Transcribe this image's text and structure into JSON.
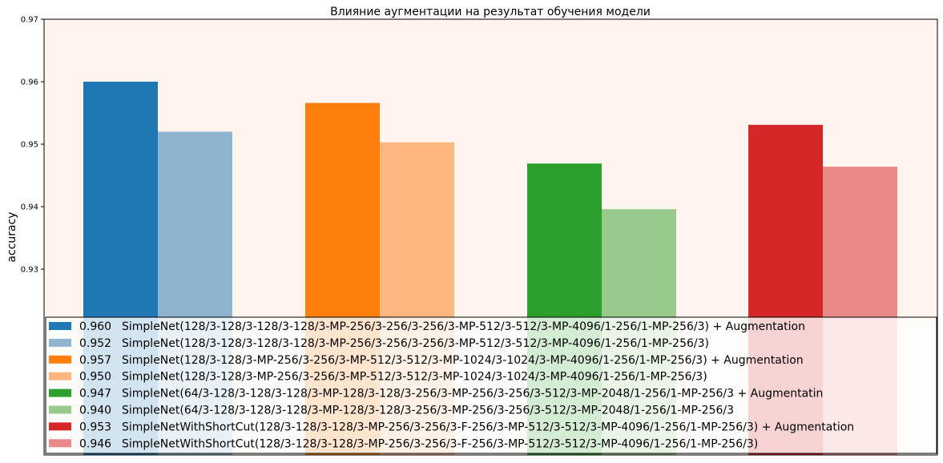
{
  "chart_data": {
    "type": "bar",
    "title": "Влияние аугментации на результат обучения модели",
    "xlabel": "",
    "ylabel": "accuracy",
    "ylim": [
      0.92,
      0.97
    ],
    "yticks": [
      "0.93",
      "0.94",
      "0.95",
      "0.96",
      "0.97"
    ],
    "grid": false,
    "legend_position": "bottom",
    "plot_background": "#fff4ee",
    "bars": [
      {
        "value": 0.96,
        "value_label": "0.960",
        "name": "SimpleNet(128/3-128/3-128/3-128/3-MP-256/3-256/3-256/3-MP-512/3-512/3-MP-4096/1-256/1-MP-256/3) + Augmentation",
        "color": "#1f77b4",
        "group": 0,
        "slot": 0
      },
      {
        "value": 0.952,
        "value_label": "0.952",
        "name": "SimpleNet(128/3-128/3-128/3-128/3-MP-256/3-256/3-256/3-MP-512/3-512/3-MP-4096/1-256/1-MP-256/3)",
        "color": "#8fb4d0",
        "group": 0,
        "slot": 1
      },
      {
        "value": 0.9566,
        "value_label": "0.957",
        "name": "SimpleNet(128/3-128/3-MP-256/3-256/3-MP-512/3-512/3-MP-1024/3-1024/3-MP-4096/1-256/1-MP-256/3) + Augmentation",
        "color": "#ff7f0e",
        "group": 1,
        "slot": 0
      },
      {
        "value": 0.9503,
        "value_label": "0.950",
        "name": "SimpleNet(128/3-128/3-MP-256/3-256/3-MP-512/3-512/3-MP-1024/3-1024/3-MP-4096/1-256/1-MP-256/3)",
        "color": "#ffb77f",
        "group": 1,
        "slot": 1
      },
      {
        "value": 0.9469,
        "value_label": "0.947",
        "name": "SimpleNet(64/3-128/3-128/3-128/3-MP-128/3-128/3-256/3-MP-256/3-256/3-512/3-MP-2048/1-256/1-MP-256/3 + Augmentatin",
        "color": "#2ca02c",
        "group": 2,
        "slot": 0
      },
      {
        "value": 0.9396,
        "value_label": "0.940",
        "name": "SimpleNet(64/3-128/3-128/3-128/3-MP-128/3-128/3-256/3-MP-256/3-256/3-512/3-MP-2048/1-256/1-MP-256/3",
        "color": "#98ca8c",
        "group": 2,
        "slot": 1
      },
      {
        "value": 0.9531,
        "value_label": "0.953",
        "name": "SimpleNetWithShortCut(128/3-128/3-128/3-MP-256/3-256/3-F-256/3-MP-512/3-512/3-MP-4096/1-256/1-MP-256/3) + Augmentation",
        "color": "#d62728",
        "group": 3,
        "slot": 0
      },
      {
        "value": 0.9464,
        "value_label": "0.946",
        "name": "SimpleNetWithShortCut(128/3-128/3-128/3-MP-256/3-256/3-F-256/3-MP-512/3-512/3-MP-4096/1-256/1-MP-256/3)",
        "color": "#ea8a88",
        "group": 3,
        "slot": 1
      }
    ]
  }
}
